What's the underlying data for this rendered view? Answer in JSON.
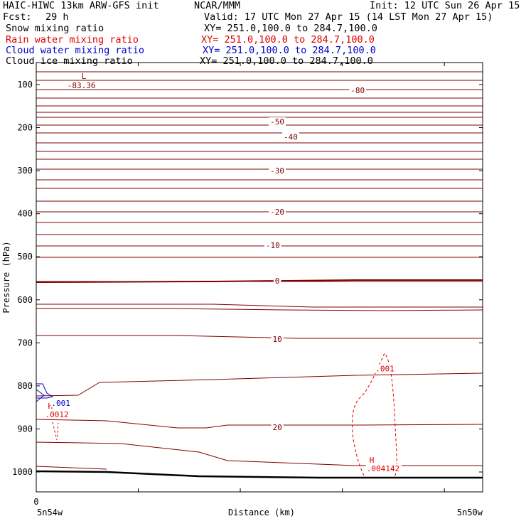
{
  "header": {
    "model": "HAIC-HIWC 13km ARW-GFS init",
    "org": "NCAR/MMM",
    "init": "Init: 12 UTC Sun 26 Apr 15",
    "fcst_label": "Fcst:",
    "fcst_value": "29 h",
    "valid": "Valid: 17 UTC Mon 27 Apr 15 (14 LST Mon 27 Apr 15)"
  },
  "fields": [
    {
      "name": "Snow mixing ratio",
      "xy": "XY= 251.0,100.0 to 284.7,100.0",
      "color": "#000000"
    },
    {
      "name": "Rain water mixing ratio",
      "xy": "XY= 251.0,100.0 to 284.7,100.0",
      "color": "#e00000"
    },
    {
      "name": "Cloud water mixing ratio",
      "xy": "XY= 251.0,100.0 to 284.7,100.0",
      "color": "#0000cc"
    },
    {
      "name": "Cloud ice mixing ratio",
      "xy": "XY= 251.0,100.0 to 284.7,100.0",
      "color": "#000000"
    }
  ],
  "chart_data": {
    "type": "line",
    "title": "",
    "xlabel": "Distance (km)",
    "ylabel": "Pressure (hPa)",
    "x_start_label": "5n54w",
    "x_end_label": "5n50w",
    "x_zero_label": "0",
    "ylim": [
      1050,
      70
    ],
    "y_ticks": [
      100,
      200,
      300,
      400,
      500,
      600,
      700,
      800,
      900,
      1000
    ],
    "x_range": [
      0,
      1
    ],
    "x_minor_ticks": [
      0.2286,
      0.4571,
      0.6857,
      0.9143
    ],
    "colors": {
      "temperature": "#800000",
      "rain": "#e00000",
      "cloud_water": "#0000cc",
      "ground": "#000000"
    },
    "temperature_isotherms": [
      {
        "label": "-83.36",
        "kind": "min",
        "marker": "L",
        "x": 0.076,
        "p": 85
      },
      {
        "label": "-80",
        "x": 0.72,
        "p": 113
      },
      {
        "label": "-50",
        "x": 0.54,
        "p": 186
      },
      {
        "label": "-40",
        "x": 0.57,
        "p": 221
      },
      {
        "label": "-30",
        "x": 0.54,
        "p": 300
      },
      {
        "label": "-20",
        "x": 0.54,
        "p": 396
      },
      {
        "label": "-10",
        "x": 0.53,
        "p": 473
      },
      {
        "label": "0",
        "x": 0.54,
        "p": 556
      },
      {
        "label": "10",
        "x": 0.54,
        "p": 691
      },
      {
        "label": "20",
        "x": 0.54,
        "p": 896
      }
    ],
    "rain_labels": [
      {
        "label": ".001",
        "x": 0.76,
        "p": 760
      },
      {
        "label": ".0012",
        "marker": "H",
        "x": 0.02,
        "p": 866
      },
      {
        "label": ".004142",
        "marker": "H",
        "x": 0.74,
        "p": 992
      }
    ],
    "cloud_water_labels": [
      {
        "label": ".001",
        "x": 0.015,
        "p": 840
      }
    ]
  }
}
